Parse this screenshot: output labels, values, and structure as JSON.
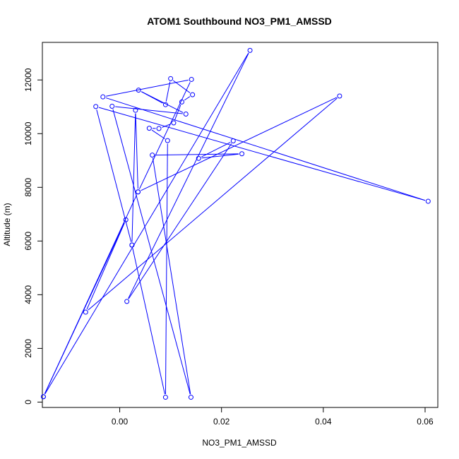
{
  "chart_data": {
    "type": "line",
    "title": "ATOM1 Southbound NO3_PM1_AMSSD",
    "xlabel": "NO3_PM1_AMSSD",
    "ylabel": "Altitude (m)",
    "xlim": [
      -0.0152,
      0.0625
    ],
    "ylim": [
      -200,
      13400
    ],
    "xticks": [
      0.0,
      0.02,
      0.04,
      0.06
    ],
    "xtick_labels": [
      "0.00",
      "0.02",
      "0.04",
      "0.06"
    ],
    "yticks": [
      0,
      2000,
      4000,
      6000,
      8000,
      10000,
      12000
    ],
    "ytick_labels": [
      "0",
      "2000",
      "4000",
      "6000",
      "8000",
      "10000",
      "12000"
    ],
    "grid": false,
    "series": [
      {
        "color": "#0000ff",
        "marker": "open-circle",
        "points": [
          [
            -0.015,
            200
          ],
          [
            0.0256,
            13100
          ],
          [
            0.0014,
            3750
          ],
          [
            0.0223,
            9730
          ],
          [
            0.0155,
            9080
          ],
          [
            0.024,
            9250
          ],
          [
            0.0064,
            9200
          ],
          [
            0.014,
            180
          ],
          [
            -0.0015,
            11020
          ],
          [
            0.013,
            10730
          ],
          [
            0.0037,
            11620
          ],
          [
            0.009,
            11080
          ],
          [
            0.01,
            12050
          ],
          [
            0.0143,
            11450
          ],
          [
            0.0122,
            11180
          ],
          [
            0.0106,
            10400
          ],
          [
            0.0077,
            10190
          ],
          [
            0.0058,
            10200
          ],
          [
            0.0094,
            9740
          ],
          [
            0.009,
            180
          ],
          [
            0.0024,
            5850
          ],
          [
            0.0031,
            10870
          ],
          [
            0.0036,
            7830
          ],
          [
            -0.015,
            200
          ],
          [
            0.0012,
            6790
          ],
          [
            -0.0067,
            3350
          ],
          [
            0.0432,
            11400
          ],
          [
            0.0036,
            7830
          ],
          [
            0.0141,
            12020
          ],
          [
            -0.0033,
            11370
          ],
          [
            0.0606,
            7480
          ],
          [
            -0.0047,
            11010
          ],
          [
            0.0024,
            5850
          ]
        ]
      }
    ]
  }
}
